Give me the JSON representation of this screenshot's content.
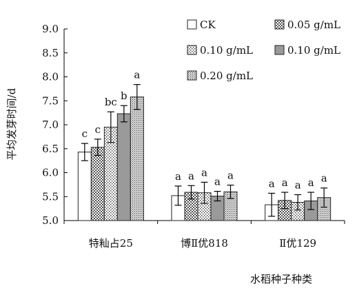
{
  "chart_data": {
    "type": "bar",
    "xlabel": "水稻种子种类",
    "ylabel": "平均发芽时间/d",
    "ylim": [
      5.0,
      9.0
    ],
    "yticks": [
      "5.0",
      "5.5",
      "6.0",
      "6.5",
      "7.0",
      "7.5",
      "8.0",
      "8.5",
      "9.0"
    ],
    "categories": [
      "特籼占25",
      "博Ⅱ优818",
      "Ⅱ优129"
    ],
    "grid": false,
    "legend_position": "top-right",
    "series": [
      {
        "name": "CK",
        "pattern": "white",
        "values": [
          6.43,
          5.52,
          5.33
        ],
        "errors": [
          0.18,
          0.2,
          0.24
        ],
        "letters": [
          "c",
          "a",
          "a"
        ]
      },
      {
        "name": "0.05 g/mL",
        "pattern": "checker",
        "values": [
          6.53,
          5.59,
          5.42
        ],
        "errors": [
          0.17,
          0.14,
          0.17
        ],
        "letters": [
          "c",
          "a",
          "a"
        ]
      },
      {
        "name": "0.10 g/mL",
        "pattern": "dots",
        "values": [
          6.95,
          5.58,
          5.38
        ],
        "errors": [
          0.32,
          0.22,
          0.16
        ],
        "letters": [
          "bc",
          "a",
          "a"
        ]
      },
      {
        "name": "0.10 g/mL",
        "pattern": "gray",
        "values": [
          7.23,
          5.51,
          5.41
        ],
        "errors": [
          0.17,
          0.1,
          0.18
        ],
        "letters": [
          "b",
          "a",
          "a"
        ]
      },
      {
        "name": "0.20 g/mL",
        "pattern": "dense",
        "values": [
          7.58,
          5.6,
          5.48
        ],
        "errors": [
          0.26,
          0.14,
          0.2
        ],
        "letters": [
          "a",
          "a",
          "a"
        ]
      }
    ],
    "colors": {
      "axis": "#000000",
      "bar_stroke": "#222222",
      "gray_fill": "#9a9a9a",
      "pattern_ink": "#333333"
    }
  }
}
